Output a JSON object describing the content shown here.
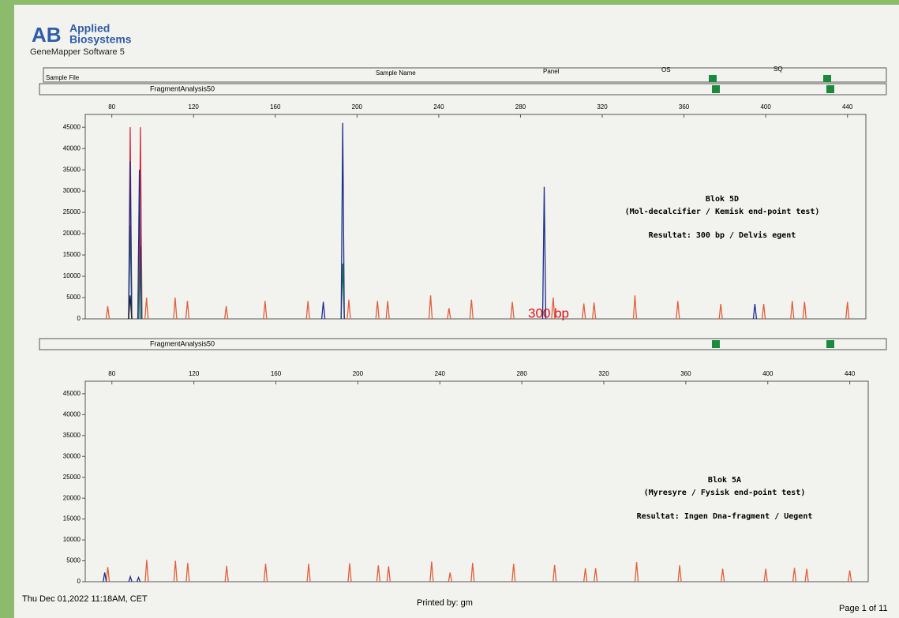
{
  "header": {
    "brand_line1": "Applied",
    "brand_line2": "Biosystems",
    "software": "GeneMapper Software 5"
  },
  "table": {
    "columns": [
      "Sample File",
      "Sample Name",
      "Panel",
      "OS",
      "SQ"
    ]
  },
  "chart_data": [
    {
      "type": "peaks",
      "panel_label": "FragmentAnalysis50",
      "annotations": [
        "Blok 5D",
        "(Mol-decalcifier / Kemisk end-point test)",
        "Resultat: 300 bp / Delvis egent"
      ],
      "marker": "300 bp",
      "xlim": [
        67,
        449
      ],
      "xticks": [
        80,
        120,
        160,
        200,
        240,
        280,
        320,
        360,
        400,
        440
      ],
      "ylim": [
        0,
        48000
      ],
      "yticks": [
        0,
        5000,
        10000,
        15000,
        20000,
        25000,
        30000,
        35000,
        40000,
        45000
      ],
      "series": [
        {
          "color": "#e0603a",
          "x": [
            78,
            97,
            111,
            117,
            136,
            155,
            176,
            196,
            210,
            215,
            236,
            245,
            256,
            276,
            296,
            311,
            316,
            336,
            357,
            378,
            399,
            413,
            419,
            440
          ],
          "values": [
            3000,
            5000,
            5000,
            4200,
            3000,
            4200,
            4200,
            4500,
            4200,
            4200,
            5500,
            2500,
            4500,
            4000,
            5000,
            3600,
            3800,
            5500,
            4200,
            3500,
            3500,
            4200,
            4000,
            4000
          ]
        },
        {
          "color": "#d8283a",
          "x": [
            89,
            94
          ],
          "values": [
            45000,
            45000
          ]
        },
        {
          "color": "#1f7a4a",
          "x": [
            89,
            94,
            193
          ],
          "values": [
            22000,
            17000,
            13000
          ]
        },
        {
          "color": "#1c2f8a",
          "x": [
            89,
            93.5,
            183.5,
            193,
            291.6,
            394.7
          ],
          "values": [
            37000,
            35000,
            4000,
            46000,
            31000,
            3500
          ]
        },
        {
          "color": "#222222",
          "x": [
            89
          ],
          "values": [
            5500
          ]
        }
      ]
    },
    {
      "type": "peaks",
      "panel_label": "FragmentAnalysis50",
      "annotations": [
        "Blok 5A",
        "(Myresyre / Fysisk end-point test)",
        "Resultat: Ingen Dna-fragment / Uegent"
      ],
      "xlim": [
        67,
        449
      ],
      "xticks": [
        80,
        120,
        160,
        200,
        240,
        280,
        320,
        360,
        400,
        440
      ],
      "ylim": [
        0,
        48000
      ],
      "yticks": [
        0,
        5000,
        10000,
        15000,
        20000,
        25000,
        30000,
        35000,
        40000,
        45000
      ],
      "series": [
        {
          "color": "#e0603a",
          "x": [
            78,
            97,
            111,
            117,
            136,
            155,
            176,
            196,
            210,
            215,
            236,
            245,
            256,
            276,
            296,
            311,
            316,
            336,
            357,
            378,
            399,
            413,
            419,
            440
          ],
          "values": [
            3500,
            5200,
            5000,
            4500,
            3800,
            4300,
            4300,
            4400,
            3900,
            3700,
            4800,
            2200,
            4500,
            4300,
            4000,
            3200,
            3200,
            4700,
            3900,
            3100,
            3100,
            3300,
            3100,
            2700
          ]
        },
        {
          "color": "#1c2f8a",
          "x": [
            76.5,
            89,
            93
          ],
          "values": [
            2200,
            1200,
            1000
          ]
        }
      ]
    }
  ],
  "footer": {
    "date": "Thu Dec 01,2022 11:18AM, CET",
    "printed_by": "Printed by: gm",
    "page": "Page 1 of 11"
  }
}
